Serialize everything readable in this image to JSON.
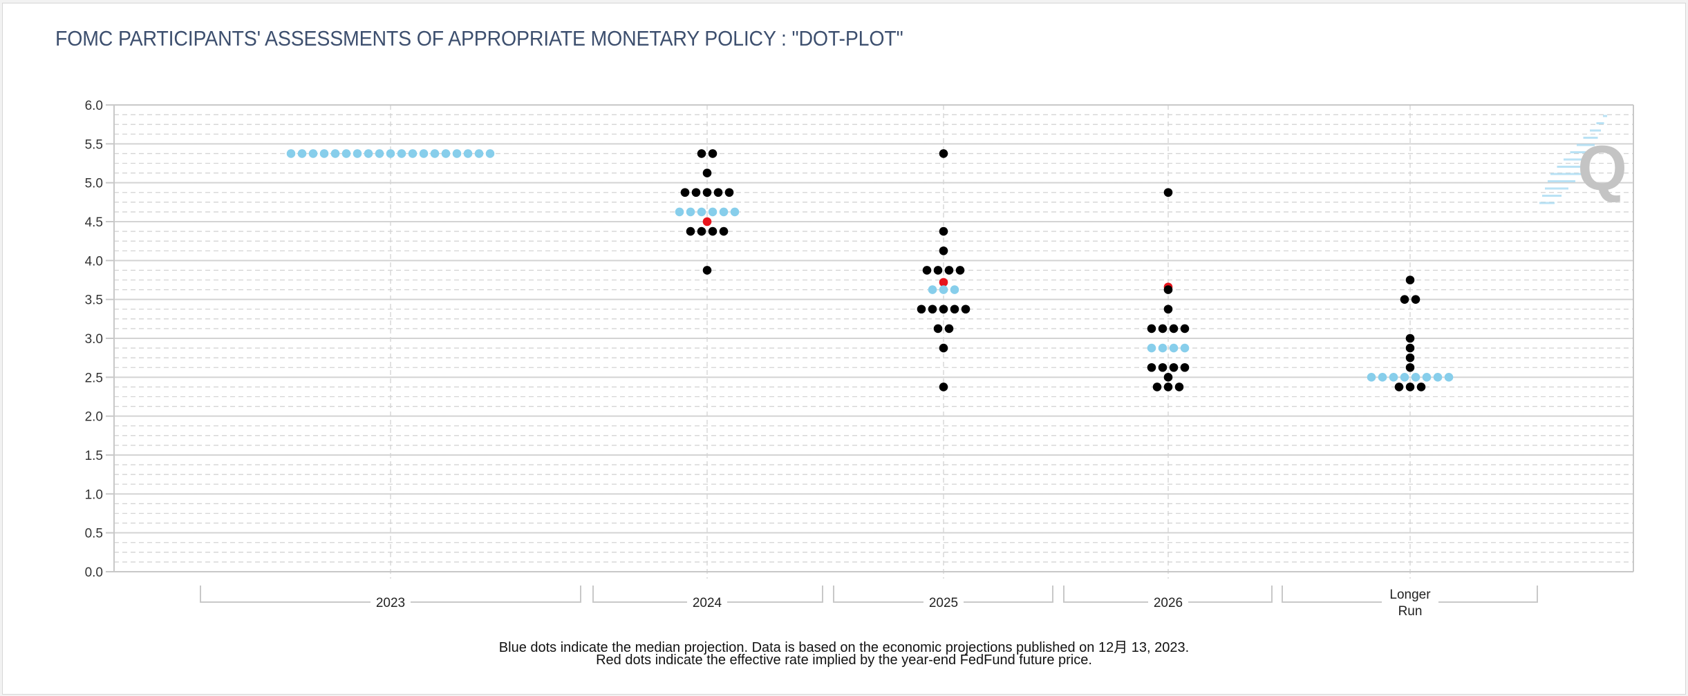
{
  "title": "FOMC PARTICIPANTS' ASSESSMENTS OF APPROPRIATE MONETARY POLICY : \"DOT-PLOT\"",
  "footnotes": [
    "Blue dots indicate the median projection. Data is based on the economic projections published on 12月 13, 2023.",
    "Red dots indicate the effective rate implied by the year-end FedFund future price."
  ],
  "logo": {
    "icon": "q-logo-icon",
    "letter": "Q"
  },
  "colors": {
    "median": "#87ceeb",
    "participant": "#000000",
    "futures": "#e8141c",
    "grid": "#d3d3d3",
    "title": "#3d4f6e"
  },
  "chart_data": {
    "type": "scatter",
    "title": "FOMC PARTICIPANTS' ASSESSMENTS OF APPROPRIATE MONETARY POLICY : \"DOT-PLOT\"",
    "xlabel": "",
    "ylabel": "",
    "ylim": [
      0,
      6
    ],
    "yticks": [
      "0.0",
      "0.5",
      "1.0",
      "1.5",
      "2.0",
      "2.5",
      "3.0",
      "3.5",
      "4.0",
      "4.5",
      "5.0",
      "5.5",
      "6.0"
    ],
    "grid": true,
    "categories": [
      {
        "label": "2023",
        "lines": [
          "2023"
        ]
      },
      {
        "label": "2024",
        "lines": [
          "2024"
        ]
      },
      {
        "label": "2025",
        "lines": [
          "2025"
        ]
      },
      {
        "label": "2026",
        "lines": [
          "2026"
        ]
      },
      {
        "label": "Longer Run",
        "lines": [
          "Longer",
          "Run"
        ]
      }
    ],
    "series": [
      {
        "category": "2023",
        "dots": [
          {
            "rate": 5.375,
            "count": 19,
            "median": true
          }
        ],
        "futures_rate": null
      },
      {
        "category": "2024",
        "dots": [
          {
            "rate": 5.375,
            "count": 2
          },
          {
            "rate": 5.125,
            "count": 1
          },
          {
            "rate": 4.875,
            "count": 5
          },
          {
            "rate": 4.625,
            "count": 6,
            "median": true
          },
          {
            "rate": 4.375,
            "count": 4
          },
          {
            "rate": 3.875,
            "count": 1
          }
        ],
        "futures_rate": 4.5
      },
      {
        "category": "2025",
        "dots": [
          {
            "rate": 5.375,
            "count": 1
          },
          {
            "rate": 4.375,
            "count": 1
          },
          {
            "rate": 4.125,
            "count": 1
          },
          {
            "rate": 3.875,
            "count": 4
          },
          {
            "rate": 3.625,
            "count": 3,
            "median": true
          },
          {
            "rate": 3.375,
            "count": 5
          },
          {
            "rate": 3.125,
            "count": 2
          },
          {
            "rate": 2.875,
            "count": 1
          },
          {
            "rate": 2.375,
            "count": 1
          }
        ],
        "futures_rate": 3.72
      },
      {
        "category": "2026",
        "dots": [
          {
            "rate": 4.875,
            "count": 1
          },
          {
            "rate": 3.625,
            "count": 1
          },
          {
            "rate": 3.375,
            "count": 1
          },
          {
            "rate": 3.125,
            "count": 4
          },
          {
            "rate": 2.875,
            "count": 4,
            "median": true
          },
          {
            "rate": 2.625,
            "count": 4
          },
          {
            "rate": 2.5,
            "count": 1
          },
          {
            "rate": 2.375,
            "count": 3
          }
        ],
        "futures_rate": 3.66
      },
      {
        "category": "Longer Run",
        "dots": [
          {
            "rate": 3.75,
            "count": 1
          },
          {
            "rate": 3.5,
            "count": 2
          },
          {
            "rate": 3.0,
            "count": 1
          },
          {
            "rate": 2.875,
            "count": 1
          },
          {
            "rate": 2.75,
            "count": 1
          },
          {
            "rate": 2.625,
            "count": 1
          },
          {
            "rate": 2.5,
            "count": 8,
            "median": true
          },
          {
            "rate": 2.375,
            "count": 3
          }
        ],
        "futures_rate": null
      }
    ],
    "legend": "none"
  }
}
